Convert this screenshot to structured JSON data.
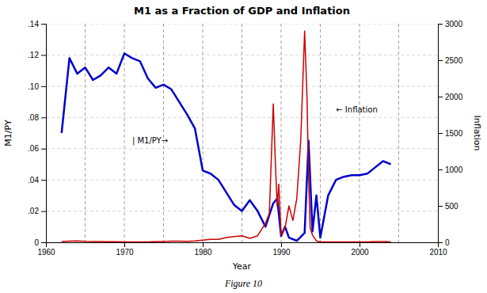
{
  "chart_data": {
    "type": "line",
    "title": "M1 as a Fraction of GDP and Inflation",
    "xlabel": "Year",
    "ylabel": "M1/PY",
    "y2label": "Inflation",
    "caption": "Figure 10",
    "xlim": [
      1960,
      2010
    ],
    "xticks": [
      1960,
      1970,
      1980,
      1990,
      2000,
      2010
    ],
    "ylim": [
      0,
      0.14
    ],
    "yticks": [
      0,
      {
        "value": 0.02,
        "label": ".02"
      },
      {
        "value": 0.04,
        "label": ".04"
      },
      {
        "value": 0.06,
        "label": ".06"
      },
      {
        "value": 0.08,
        "label": ".08"
      },
      {
        "value": 0.1,
        "label": ".10"
      },
      {
        "value": 0.12,
        "label": ".12"
      },
      {
        "value": 0.14,
        "label": ".14"
      }
    ],
    "y2lim": [
      0,
      3000
    ],
    "y2ticks": [
      0,
      500,
      1000,
      1500,
      2000,
      2500,
      3000
    ],
    "grid": true,
    "vlines": [
      1965,
      1970,
      1975,
      1980,
      1985,
      1990,
      1995,
      2000,
      2005
    ],
    "annotations": [
      {
        "text": "| M1/PY→",
        "x": 1971,
        "y": 0.065
      },
      {
        "text": "← Inflation",
        "x": 1997,
        "y": 0.085
      }
    ],
    "series": [
      {
        "color": "#0000cc",
        "x": [
          1962,
          1963,
          1964,
          1965,
          1966,
          1967,
          1968,
          1969,
          1970,
          1971,
          1972,
          1973,
          1974,
          1975,
          1976,
          1977,
          1978,
          1979,
          1980,
          1981,
          1982,
          1983,
          1984,
          1985,
          1986,
          1987,
          1988,
          1989,
          1989.5,
          1990,
          1990.5,
          1991,
          1992,
          1993,
          1993.5,
          1994,
          1994.5,
          1995,
          1996,
          1997,
          1998,
          1999,
          2000,
          2001,
          2002,
          2003,
          2004
        ],
        "values": [
          0.07,
          0.118,
          0.108,
          0.112,
          0.104,
          0.107,
          0.112,
          0.108,
          0.121,
          0.118,
          0.116,
          0.105,
          0.099,
          0.101,
          0.098,
          0.09,
          0.082,
          0.073,
          0.046,
          0.044,
          0.04,
          0.032,
          0.024,
          0.02,
          0.027,
          0.02,
          0.01,
          0.025,
          0.028,
          0.004,
          0.01,
          0.003,
          0.001,
          0.006,
          0.065,
          0.007,
          0.03,
          0.003,
          0.03,
          0.04,
          0.042,
          0.043,
          0.043,
          0.044,
          0.048,
          0.052,
          0.05
        ]
      },
      {
        "color": "#cc0000",
        "axis": "y2",
        "x": [
          1962,
          1963,
          1964,
          1965,
          1966,
          1967,
          1968,
          1969,
          1970,
          1971,
          1972,
          1973,
          1974,
          1975,
          1976,
          1977,
          1978,
          1979,
          1980,
          1981,
          1982,
          1983,
          1984,
          1985,
          1986,
          1987,
          1988,
          1988.5,
          1989,
          1989.3,
          1989.5,
          1989.7,
          1990,
          1990.5,
          1991,
          1991.5,
          1992,
          1992.5,
          1993,
          1993.3,
          1993.5,
          1993.7,
          1994,
          1994.5,
          1995,
          1996,
          1997,
          1998,
          1999,
          2000,
          2001,
          2002,
          2003,
          2004
        ],
        "values": [
          10,
          15,
          20,
          14,
          12,
          10,
          8,
          7,
          6,
          6,
          5,
          5,
          10,
          10,
          16,
          15,
          14,
          18,
          30,
          40,
          40,
          65,
          80,
          90,
          55,
          90,
          260,
          400,
          1900,
          1000,
          500,
          800,
          100,
          200,
          500,
          300,
          600,
          1400,
          2900,
          2000,
          900,
          200,
          100,
          20,
          5,
          5,
          5,
          5,
          5,
          5,
          5,
          10,
          10,
          5
        ]
      }
    ]
  }
}
